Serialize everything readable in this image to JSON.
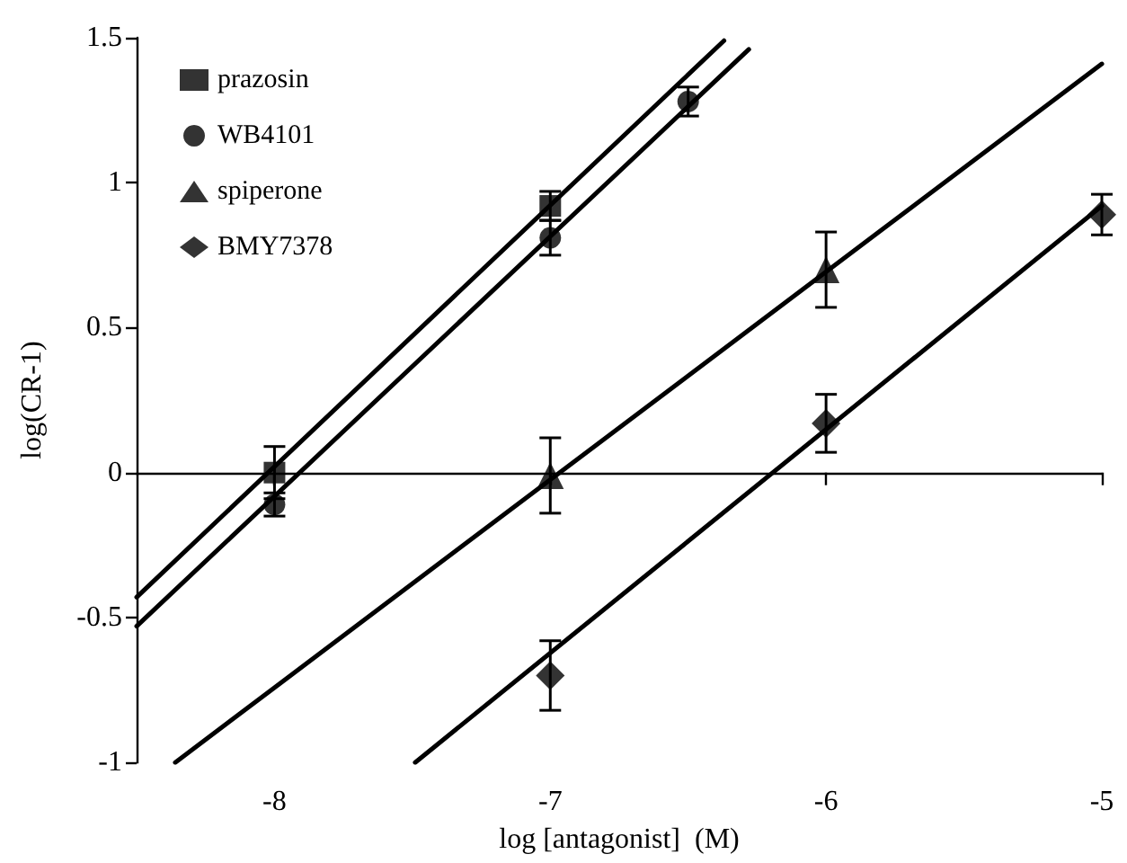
{
  "chart_data": {
    "type": "scatter",
    "xlabel": "log [antagonist]  (M)",
    "ylabel": "log(CR-1)",
    "xlim": [
      -8.5,
      -5
    ],
    "xticks": [
      -8,
      -7,
      -6,
      -5
    ],
    "ylim": [
      -1,
      1.5
    ],
    "yticks": [
      -1,
      -0.5,
      0,
      0.5,
      1,
      1.5
    ],
    "legend": "top left",
    "series": [
      {
        "name": "prazosin",
        "color": "#000000",
        "marker": "square",
        "x": [
          -8,
          -7
        ],
        "values": [
          0.0,
          0.92
        ],
        "errors": [
          0.09,
          0.05
        ]
      },
      {
        "name": "WB4101",
        "color": "#000000",
        "marker": "circle",
        "x": [
          -8,
          -7,
          -6.5
        ],
        "values": [
          -0.11,
          0.81,
          1.28
        ],
        "errors": [
          0.04,
          0.06,
          0.05
        ]
      },
      {
        "name": "spiperone",
        "color": "#000000",
        "marker": "triangle",
        "x": [
          -7,
          -6
        ],
        "values": [
          -0.01,
          0.7
        ],
        "errors": [
          0.13,
          0.13
        ]
      },
      {
        "name": "BMY7378",
        "color": "#000000",
        "marker": "diamond",
        "x": [
          -7,
          -6,
          -5
        ],
        "values": [
          -0.7,
          0.17,
          0.89
        ],
        "errors": [
          0.12,
          0.1,
          0.07
        ]
      },
      {
        "type": "line",
        "color": "#000000",
        "marker": "none",
        "x": [
          -8.5,
          -6.37
        ],
        "values": [
          -0.43,
          1.49
        ]
      },
      {
        "type": "line",
        "color": "#000000",
        "marker": "none",
        "x": [
          -8.5,
          -6.28
        ],
        "values": [
          -0.53,
          1.46
        ]
      },
      {
        "type": "line",
        "color": "#000000",
        "marker": "none",
        "x": [
          -8.36,
          -5
        ],
        "values": [
          -1.0,
          1.41
        ]
      },
      {
        "type": "line",
        "color": "#000000",
        "marker": "none",
        "x": [
          -7.49,
          -5
        ],
        "values": [
          -1.0,
          0.92
        ]
      }
    ]
  }
}
